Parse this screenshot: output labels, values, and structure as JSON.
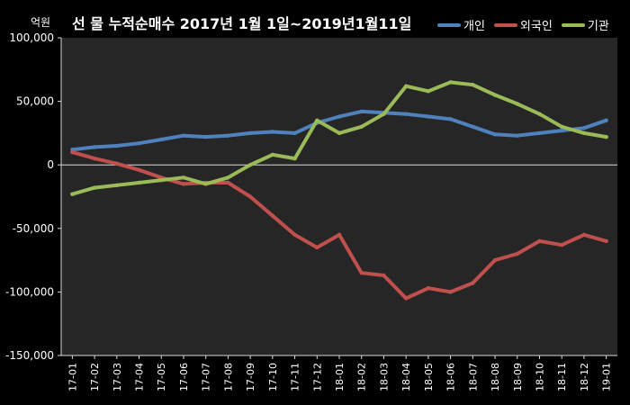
{
  "header": {
    "unit_label": "억원",
    "title": "선 물 누적순매수 2017년 1월 1일~2019년1월11일"
  },
  "colors": {
    "background": "#000000",
    "plot_background": "#262626",
    "axis": "#d9d9d9",
    "individual": "#4f81bd",
    "foreign": "#c0504d",
    "institution": "#9bbb59"
  },
  "chart_data": {
    "type": "line",
    "title": "선 물 누적순매수 2017년 1월 1일~2019년1월11일",
    "ylabel": "억원",
    "xlabel": "",
    "ylim": [
      -150000,
      100000
    ],
    "grid": false,
    "legend_position": "top-right",
    "y_ticks": [
      100000,
      50000,
      0,
      -50000,
      -100000,
      -150000
    ],
    "y_tick_labels": [
      "100,000",
      "50,000",
      "0",
      "-50,000",
      "-100,000",
      "-150,000"
    ],
    "categories": [
      "17-01",
      "17-02",
      "17-03",
      "17-04",
      "17-05",
      "17-06",
      "17-07",
      "17-08",
      "17-09",
      "17-10",
      "17-11",
      "17-12",
      "18-01",
      "18-02",
      "18-03",
      "18-04",
      "18-05",
      "18-06",
      "18-07",
      "18-08",
      "18-09",
      "18-10",
      "18-11",
      "18-12",
      "19-01"
    ],
    "series": [
      {
        "name": "개인",
        "values": [
          12000,
          14000,
          15000,
          17000,
          20000,
          23000,
          22000,
          23000,
          25000,
          26000,
          25000,
          33000,
          38000,
          42000,
          41000,
          40000,
          38000,
          36000,
          30000,
          24000,
          23000,
          25000,
          27000,
          29000,
          35000
        ]
      },
      {
        "name": "외국인",
        "values": [
          10000,
          5000,
          1000,
          -4000,
          -10000,
          -15000,
          -14000,
          -14000,
          -25000,
          -40000,
          -55000,
          -65000,
          -55000,
          -85000,
          -87000,
          -105000,
          -97000,
          -100000,
          -93000,
          -75000,
          -70000,
          -60000,
          -63000,
          -55000,
          -60000
        ]
      },
      {
        "name": "기관",
        "values": [
          -23000,
          -18000,
          -16000,
          -14000,
          -12000,
          -10000,
          -15000,
          -10000,
          0,
          8000,
          5000,
          35000,
          25000,
          30000,
          40000,
          62000,
          58000,
          65000,
          63000,
          55000,
          48000,
          40000,
          30000,
          25000,
          22000
        ]
      }
    ]
  }
}
